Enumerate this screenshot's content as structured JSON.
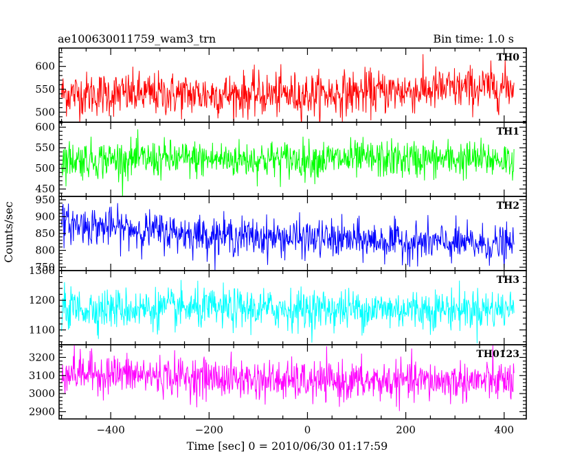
{
  "header": {
    "title": "ae100630011759_wam3_trn",
    "bin_time": "Bin time: 1.0 s"
  },
  "axes": {
    "xlabel": "Time [sec] 0 = 2010/06/30 01:17:59",
    "ylabel": "Counts/sec"
  },
  "chart_data": {
    "type": "line",
    "title": "ae100630011759_wam3_trn",
    "subtitle": "Bin time: 1.0 s",
    "xlabel": "Time [sec] 0 = 2010/06/30 01:17:59",
    "ylabel": "Counts/sec",
    "xlim": [
      -505,
      445
    ],
    "x_range_data": [
      -500,
      420
    ],
    "bin_time_s": 1.0,
    "x_ticks": [
      -400,
      -200,
      0,
      200,
      400
    ],
    "x_tick_labels": [
      "−400",
      "−200",
      "0",
      "200",
      "400"
    ],
    "grid": false,
    "panels": [
      {
        "name": "TH0",
        "color": "#ff0000",
        "ylim": [
          478,
          640
        ],
        "y_ticks": [
          500,
          550,
          600
        ],
        "y_tick_labels": [
          "500",
          "550",
          "600"
        ],
        "mean": 545,
        "sigma": 24,
        "trend": [
          [
            -500,
            540
          ],
          [
            0,
            538
          ],
          [
            420,
            556
          ]
        ]
      },
      {
        "name": "TH1",
        "color": "#00ff00",
        "ylim": [
          432,
          612
        ],
        "y_ticks": [
          450,
          500,
          550,
          600
        ],
        "y_tick_labels": [
          "450",
          "500",
          "550",
          "600"
        ],
        "mean": 522,
        "sigma": 23,
        "trend": [
          [
            -500,
            522
          ],
          [
            0,
            522
          ],
          [
            420,
            522
          ]
        ]
      },
      {
        "name": "TH2",
        "color": "#0000ff",
        "ylim": [
          740,
          960
        ],
        "y_ticks": [
          750,
          800,
          850,
          900,
          950
        ],
        "y_tick_labels": [
          "750",
          "800",
          "850",
          "900",
          "950"
        ],
        "mean": 840,
        "sigma": 28,
        "trend": [
          [
            -500,
            880
          ],
          [
            -200,
            845
          ],
          [
            0,
            835
          ],
          [
            420,
            815
          ]
        ]
      },
      {
        "name": "TH3",
        "color": "#00ffff",
        "ylim": [
          1050,
          1300
        ],
        "y_ticks": [
          1100,
          1200,
          1300
        ],
        "y_tick_labels": [
          "1100",
          "1200",
          "1300"
        ],
        "mean": 1170,
        "sigma": 34,
        "trend": [
          [
            -500,
            1172
          ],
          [
            0,
            1170
          ],
          [
            420,
            1170
          ]
        ]
      },
      {
        "name": "TH0123",
        "color": "#ff00ff",
        "ylim": [
          2860,
          3270
        ],
        "y_ticks": [
          2900,
          3000,
          3100,
          3200
        ],
        "y_tick_labels": [
          "2900",
          "3000",
          "3100",
          "3200"
        ],
        "mean": 3080,
        "sigma": 55,
        "trend": [
          [
            -500,
            3120
          ],
          [
            0,
            3065
          ],
          [
            420,
            3070
          ]
        ]
      }
    ]
  }
}
